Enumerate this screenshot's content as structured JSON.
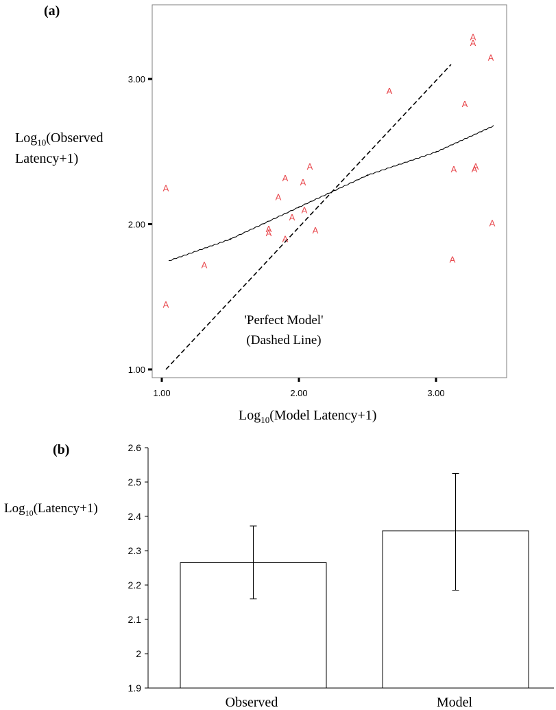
{
  "chart_data": [
    {
      "panel_label": "(a)",
      "type": "scatter",
      "xlabel_main": "Log",
      "xlabel_sub": "10",
      "xlabel_rest": "(Model Latency+1)",
      "ylabel_main": "Log",
      "ylabel_sub": "10",
      "ylabel_rest": "(Observed",
      "ylabel_line2": "Latency+1)",
      "xlim": [
        1.0,
        3.5
      ],
      "ylim": [
        1.0,
        3.5
      ],
      "x_ticks": [
        {
          "value": 1.0,
          "label": "1.00"
        },
        {
          "value": 2.0,
          "label": "2.00"
        },
        {
          "value": 3.0,
          "label": "3.00"
        }
      ],
      "y_ticks": [
        {
          "value": 1.0,
          "label": "1.00"
        },
        {
          "value": 2.0,
          "label": "2.00"
        },
        {
          "value": 3.0,
          "label": "3.00"
        }
      ],
      "marker_label": "A",
      "marker_color": "#e8474c",
      "points": [
        {
          "x": 1.03,
          "y": 2.25
        },
        {
          "x": 1.03,
          "y": 1.45
        },
        {
          "x": 1.31,
          "y": 1.72
        },
        {
          "x": 1.78,
          "y": 1.97
        },
        {
          "x": 1.78,
          "y": 1.94
        },
        {
          "x": 1.85,
          "y": 2.19
        },
        {
          "x": 1.9,
          "y": 2.32
        },
        {
          "x": 1.9,
          "y": 1.9
        },
        {
          "x": 1.95,
          "y": 2.05
        },
        {
          "x": 2.03,
          "y": 2.29
        },
        {
          "x": 2.04,
          "y": 2.1
        },
        {
          "x": 2.08,
          "y": 2.4
        },
        {
          "x": 2.12,
          "y": 1.96
        },
        {
          "x": 2.66,
          "y": 2.92
        },
        {
          "x": 3.13,
          "y": 2.38
        },
        {
          "x": 3.12,
          "y": 1.76
        },
        {
          "x": 3.21,
          "y": 2.83
        },
        {
          "x": 3.27,
          "y": 3.29
        },
        {
          "x": 3.27,
          "y": 3.25
        },
        {
          "x": 3.28,
          "y": 2.38
        },
        {
          "x": 3.29,
          "y": 2.4
        },
        {
          "x": 3.4,
          "y": 3.15
        },
        {
          "x": 3.41,
          "y": 2.01
        }
      ],
      "fit_line": [
        {
          "x": 1.05,
          "y": 1.75
        },
        {
          "x": 1.5,
          "y": 1.9
        },
        {
          "x": 2.0,
          "y": 2.12
        },
        {
          "x": 2.5,
          "y": 2.34
        },
        {
          "x": 3.0,
          "y": 2.5
        },
        {
          "x": 3.42,
          "y": 2.68
        }
      ],
      "perfect_line": [
        {
          "x": 1.03,
          "y": 1.0
        },
        {
          "x": 3.11,
          "y": 3.1
        }
      ],
      "annotation_line1": "'Perfect Model'",
      "annotation_line2": "(Dashed Line)",
      "grid": false
    },
    {
      "panel_label": "(b)",
      "type": "bar",
      "categories": [
        "Observed",
        "Model"
      ],
      "values": [
        2.265,
        2.358
      ],
      "errors": [
        [
          2.16,
          2.372
        ],
        [
          2.185,
          2.525
        ]
      ],
      "ylabel_main": "Log",
      "ylabel_sub": "10",
      "ylabel_rest": "(Latency+1)",
      "ylim": [
        1.9,
        2.6
      ],
      "y_ticks": [
        "1.9",
        "2",
        "2.1",
        "2.2",
        "2.3",
        "2.4",
        "2.5",
        "2.6"
      ],
      "grid": false
    }
  ]
}
